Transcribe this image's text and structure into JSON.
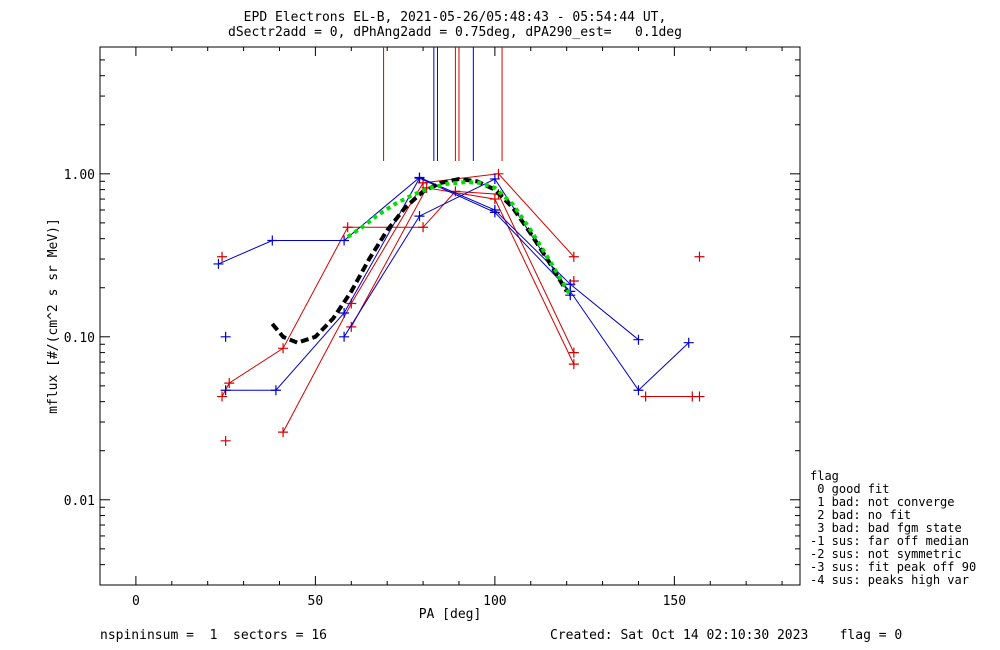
{
  "title_line1": "EPD Electrons EL-B, 2021-05-26/05:48:43 - 05:54:44 UT,",
  "title_line2": "dSectr2add = 0, dPhAng2add = 0.75deg, dPA290_est=   0.1deg",
  "footer": {
    "left": "nspininsum =  1  sectors = 16",
    "right": "Created: Sat Oct 14 02:10:30 2023    flag = 0"
  },
  "legend": {
    "title": "flag",
    "items": [
      " 0 good fit",
      " 1 bad: not converge",
      " 2 bad: no fit",
      " 3 bad: bad fgm state",
      "-1 sus: far off median",
      "-2 sus: not symmetric",
      "-3 sus: fit peak off 90",
      "-4 sus: peaks high var"
    ]
  },
  "colors": {
    "red": "#d40000",
    "blue": "#0000c8",
    "black": "#000000",
    "green": "#00e000"
  },
  "chart_data": {
    "type": "line",
    "xlabel": "PA [deg]",
    "ylabel": "mflux [#/(cm^2 s sr MeV)]",
    "xlim": [
      -10,
      185
    ],
    "ylim": [
      0.003,
      6
    ],
    "yscale": "log",
    "xticks": [
      0,
      50,
      100,
      150
    ],
    "xtick_labels": [
      "0",
      "50",
      "100",
      "150"
    ],
    "yticks": [
      0.01,
      0.1,
      1.0
    ],
    "ytick_labels": [
      "0.01",
      "0.10",
      "1.00"
    ],
    "series": [
      {
        "color": "red",
        "points": [
          [
            24,
            0.043
          ],
          [
            26,
            0.052
          ],
          [
            41,
            0.085
          ],
          [
            59,
            0.47
          ],
          [
            80,
            0.47
          ],
          [
            89,
            0.78
          ],
          [
            101,
            0.75
          ],
          [
            122,
            0.08
          ]
        ]
      },
      {
        "color": "red",
        "points": [
          [
            41,
            0.026
          ],
          [
            60,
            0.16
          ],
          [
            80,
            0.88
          ],
          [
            101,
            1.0
          ],
          [
            122,
            0.31
          ]
        ]
      },
      {
        "color": "red",
        "points": [
          [
            60,
            0.115
          ],
          [
            81,
            0.82
          ],
          [
            100,
            0.7
          ],
          [
            122,
            0.068
          ]
        ]
      },
      {
        "color": "red",
        "points": [
          [
            142,
            0.043
          ],
          [
            155,
            0.043
          ]
        ]
      },
      {
        "color": "blue",
        "points": [
          [
            23,
            0.28
          ],
          [
            38,
            0.39
          ],
          [
            58,
            0.39
          ],
          [
            79,
            0.95
          ],
          [
            100,
            0.6
          ],
          [
            121,
            0.21
          ],
          [
            140,
            0.096
          ]
        ]
      },
      {
        "color": "blue",
        "points": [
          [
            25,
            0.047
          ],
          [
            39,
            0.047
          ],
          [
            58,
            0.14
          ],
          [
            79,
            0.94
          ],
          [
            100,
            0.58
          ],
          [
            121,
            0.19
          ],
          [
            140,
            0.047
          ],
          [
            154,
            0.092
          ]
        ]
      },
      {
        "color": "blue",
        "points": [
          [
            58,
            0.1
          ],
          [
            79,
            0.55
          ],
          [
            100,
            0.93
          ],
          [
            121,
            0.18
          ]
        ]
      }
    ],
    "markers": [
      {
        "color": "red",
        "x": 24,
        "y": 0.31
      },
      {
        "color": "red",
        "x": 25,
        "y": 0.023
      },
      {
        "color": "red",
        "x": 122,
        "y": 0.22
      },
      {
        "color": "red",
        "x": 157,
        "y": 0.31
      },
      {
        "color": "red",
        "x": 157,
        "y": 0.043
      },
      {
        "color": "blue",
        "x": 25,
        "y": 0.1
      }
    ],
    "fits": [
      {
        "color": "black",
        "style": "dashed",
        "points": [
          [
            38,
            0.12
          ],
          [
            41,
            0.1
          ],
          [
            45,
            0.092
          ],
          [
            50,
            0.1
          ],
          [
            55,
            0.13
          ],
          [
            60,
            0.19
          ],
          [
            65,
            0.3
          ],
          [
            70,
            0.45
          ],
          [
            75,
            0.62
          ],
          [
            80,
            0.78
          ],
          [
            85,
            0.88
          ],
          [
            90,
            0.93
          ],
          [
            95,
            0.9
          ],
          [
            100,
            0.8
          ],
          [
            105,
            0.62
          ],
          [
            110,
            0.43
          ],
          [
            115,
            0.29
          ],
          [
            120,
            0.19
          ]
        ]
      },
      {
        "color": "green",
        "style": "dotted",
        "points": [
          [
            59,
            0.41
          ],
          [
            63,
            0.47
          ],
          [
            67,
            0.55
          ],
          [
            72,
            0.65
          ],
          [
            77,
            0.74
          ],
          [
            82,
            0.82
          ],
          [
            87,
            0.87
          ],
          [
            92,
            0.89
          ],
          [
            96,
            0.88
          ],
          [
            100,
            0.82
          ],
          [
            105,
            0.65
          ],
          [
            110,
            0.45
          ],
          [
            115,
            0.3
          ],
          [
            121,
            0.18
          ]
        ]
      }
    ],
    "vlines": [
      {
        "color": "red",
        "x": 69
      },
      {
        "color": "red",
        "x": 89
      },
      {
        "color": "red",
        "x": 90
      },
      {
        "color": "red",
        "x": 102
      },
      {
        "color": "blue",
        "x": 83
      },
      {
        "color": "blue",
        "x": 84
      },
      {
        "color": "blue",
        "x": 94
      }
    ]
  }
}
